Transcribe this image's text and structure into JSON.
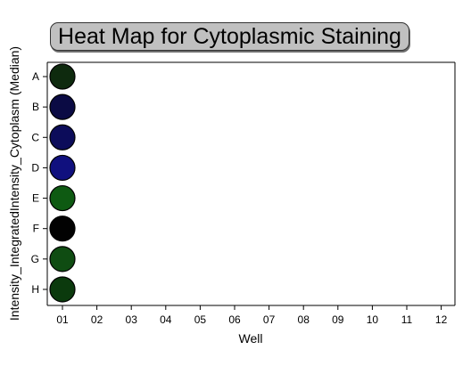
{
  "chart_data": {
    "type": "heatmap",
    "title": "Heat Map for Cytoplasmic Staining",
    "xlabel": "Well",
    "ylabel": "Intensity_IntegratedIntensity_Cytoplasm (Median)",
    "columns": [
      "01",
      "02",
      "03",
      "04",
      "05",
      "06",
      "07",
      "08",
      "09",
      "10",
      "11",
      "12"
    ],
    "rows": [
      "A",
      "B",
      "C",
      "D",
      "E",
      "F",
      "G",
      "H"
    ],
    "cells": [
      {
        "row": "A",
        "column": "01",
        "color": "#0e2a0e"
      },
      {
        "row": "B",
        "column": "01",
        "color": "#0b0b44"
      },
      {
        "row": "C",
        "column": "01",
        "color": "#0c0c5a"
      },
      {
        "row": "D",
        "column": "01",
        "color": "#10107e"
      },
      {
        "row": "E",
        "column": "01",
        "color": "#0e5a12"
      },
      {
        "row": "F",
        "column": "01",
        "color": "#020202"
      },
      {
        "row": "G",
        "column": "01",
        "color": "#0f4c12"
      },
      {
        "row": "H",
        "column": "01",
        "color": "#0b3a0d"
      }
    ],
    "grid": false,
    "legend": "none"
  }
}
